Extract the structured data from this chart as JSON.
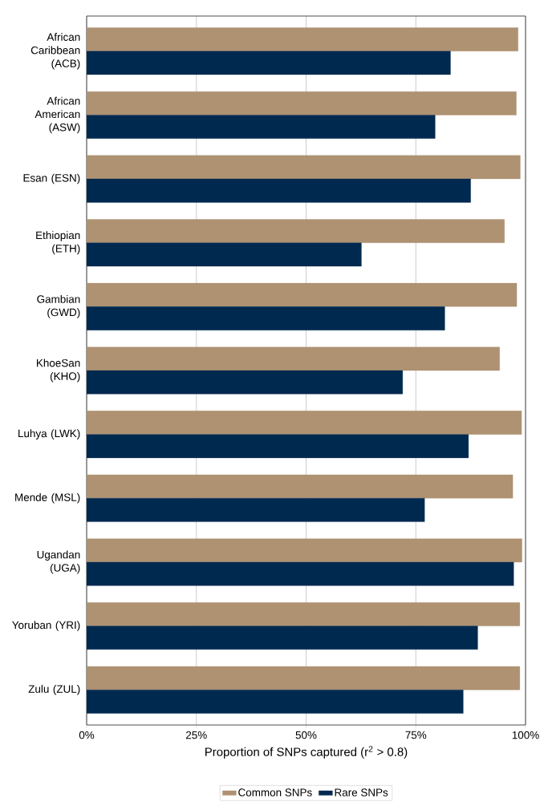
{
  "chart_data": {
    "type": "bar",
    "orientation": "horizontal",
    "categories": [
      "African Caribbean (ACB)",
      "African American (ASW)",
      "Esan (ESN)",
      "Ethiopian (ETH)",
      "Gambian (GWD)",
      "KhoeSan (KHO)",
      "Luhya (LWK)",
      "Mende (MSL)",
      "Ugandan (UGA)",
      "Yoruban (YRI)",
      "Zulu (ZUL)"
    ],
    "series": [
      {
        "name": "Common SNPs",
        "color": "#ae9272",
        "values": [
          98.3,
          97.9,
          98.8,
          95.2,
          98.0,
          94.1,
          99.1,
          97.1,
          99.2,
          98.7,
          98.7
        ]
      },
      {
        "name": "Rare SNPs",
        "color": "#00294f",
        "values": [
          82.9,
          79.4,
          87.5,
          62.6,
          81.6,
          72.0,
          87.0,
          77.0,
          97.3,
          89.1,
          85.8
        ]
      }
    ],
    "xlabel": "Proportion of SNPs captured (r$^{2}$ > 0.8)",
    "xlim": [
      0,
      100
    ],
    "xticks": [
      {
        "value": 0,
        "label": "0%"
      },
      {
        "value": 25,
        "label": "25%"
      },
      {
        "value": 50,
        "label": "50%"
      },
      {
        "value": 75,
        "label": "75%"
      },
      {
        "value": 100,
        "label": "100%"
      }
    ],
    "grid": "x",
    "legend": "bottom"
  }
}
